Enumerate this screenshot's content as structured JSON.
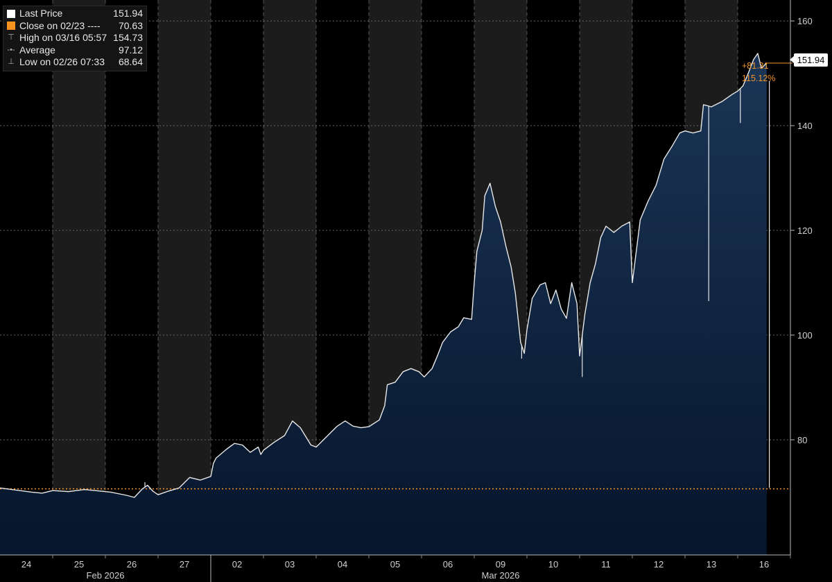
{
  "legend": {
    "last_price": {
      "label": "Last Price",
      "value": "151.94",
      "color": "#ffffff"
    },
    "close": {
      "label": "Close on 02/23 ----",
      "value": "70.63",
      "color": "#f7931e"
    },
    "high": {
      "label": "High on 03/16 05:57",
      "value": "154.73"
    },
    "average": {
      "label": "Average",
      "value": "97.12"
    },
    "low": {
      "label": "Low on 02/26 07:33",
      "value": "68.64"
    }
  },
  "last_badge": "151.94",
  "change": {
    "abs": "+81.31",
    "pct": "115.12%"
  },
  "chart_data": {
    "type": "area",
    "ylim": [
      58,
      164
    ],
    "yticks": [
      80,
      100,
      120,
      140,
      160
    ],
    "reference_line": {
      "value": 70.63,
      "style": "dotted",
      "color": "#f7931e"
    },
    "days": [
      "24",
      "25",
      "26",
      "27",
      "02",
      "03",
      "04",
      "05",
      "06",
      "09",
      "10",
      "11",
      "12",
      "13",
      "16"
    ],
    "months": [
      {
        "label": "Feb 2026",
        "from_day": 0,
        "to_day": 3
      },
      {
        "label": "Mar 2026",
        "from_day": 4,
        "to_day": 14
      }
    ],
    "series": [
      {
        "color": "#e8e8e8",
        "fill_top": "#1b3556",
        "fill_bottom": "#06162c",
        "points": [
          [
            0.0,
            70.8
          ],
          [
            0.3,
            70.4
          ],
          [
            0.6,
            70.0
          ],
          [
            0.8,
            69.8
          ],
          [
            1.0,
            70.3
          ],
          [
            1.3,
            70.1
          ],
          [
            1.6,
            70.5
          ],
          [
            1.9,
            70.2
          ],
          [
            2.1,
            70.0
          ],
          [
            2.4,
            69.4
          ],
          [
            2.55,
            69.0
          ],
          [
            2.7,
            70.6
          ],
          [
            2.8,
            71.3
          ],
          [
            2.9,
            70.2
          ],
          [
            3.0,
            69.5
          ],
          [
            3.2,
            70.2
          ],
          [
            3.4,
            70.8
          ],
          [
            3.6,
            72.8
          ],
          [
            3.8,
            72.3
          ],
          [
            4.0,
            73.0
          ],
          [
            4.05,
            75.5
          ],
          [
            4.1,
            76.5
          ],
          [
            4.3,
            78.2
          ],
          [
            4.45,
            79.3
          ],
          [
            4.6,
            79.0
          ],
          [
            4.75,
            77.6
          ],
          [
            4.9,
            78.6
          ],
          [
            4.95,
            77.2
          ],
          [
            5.0,
            78.0
          ],
          [
            5.2,
            79.5
          ],
          [
            5.4,
            80.8
          ],
          [
            5.55,
            83.6
          ],
          [
            5.7,
            82.3
          ],
          [
            5.9,
            79.0
          ],
          [
            6.0,
            78.6
          ],
          [
            6.2,
            80.6
          ],
          [
            6.4,
            82.6
          ],
          [
            6.55,
            83.6
          ],
          [
            6.7,
            82.6
          ],
          [
            6.85,
            82.3
          ],
          [
            7.0,
            82.5
          ],
          [
            7.2,
            83.8
          ],
          [
            7.3,
            86.5
          ],
          [
            7.35,
            90.5
          ],
          [
            7.5,
            91.0
          ],
          [
            7.65,
            93.0
          ],
          [
            7.8,
            93.6
          ],
          [
            7.95,
            93.0
          ],
          [
            8.05,
            92.0
          ],
          [
            8.2,
            93.6
          ],
          [
            8.3,
            96.0
          ],
          [
            8.4,
            98.6
          ],
          [
            8.55,
            100.6
          ],
          [
            8.7,
            101.6
          ],
          [
            8.8,
            103.3
          ],
          [
            8.95,
            103.0
          ],
          [
            9.0,
            110.0
          ],
          [
            9.05,
            116.0
          ],
          [
            9.15,
            120.0
          ],
          [
            9.2,
            126.6
          ],
          [
            9.3,
            129.0
          ],
          [
            9.4,
            124.6
          ],
          [
            9.5,
            121.6
          ],
          [
            9.6,
            117.0
          ],
          [
            9.7,
            113.0
          ],
          [
            9.78,
            108.0
          ],
          [
            9.88,
            98.6
          ],
          [
            9.95,
            96.5
          ],
          [
            10.0,
            101.0
          ],
          [
            10.1,
            107.0
          ],
          [
            10.25,
            109.6
          ],
          [
            10.35,
            110.0
          ],
          [
            10.45,
            106.0
          ],
          [
            10.55,
            108.6
          ],
          [
            10.65,
            105.0
          ],
          [
            10.75,
            103.2
          ],
          [
            10.85,
            110.0
          ],
          [
            10.95,
            106.0
          ],
          [
            11.0,
            96.0
          ],
          [
            11.1,
            104.0
          ],
          [
            11.2,
            110.0
          ],
          [
            11.3,
            113.6
          ],
          [
            11.4,
            118.6
          ],
          [
            11.5,
            120.8
          ],
          [
            11.65,
            119.6
          ],
          [
            11.8,
            120.8
          ],
          [
            11.95,
            121.6
          ],
          [
            12.0,
            110.0
          ],
          [
            12.05,
            114.0
          ],
          [
            12.15,
            122.0
          ],
          [
            12.3,
            125.6
          ],
          [
            12.45,
            128.6
          ],
          [
            12.6,
            133.6
          ],
          [
            12.75,
            136.0
          ],
          [
            12.9,
            138.6
          ],
          [
            13.0,
            139.0
          ],
          [
            13.15,
            138.6
          ],
          [
            13.3,
            139.0
          ],
          [
            13.35,
            144.0
          ],
          [
            13.5,
            143.6
          ],
          [
            13.7,
            144.6
          ],
          [
            13.9,
            146.0
          ],
          [
            14.0,
            146.6
          ],
          [
            14.1,
            147.6
          ],
          [
            14.2,
            150.0
          ],
          [
            14.3,
            152.6
          ],
          [
            14.38,
            153.8
          ],
          [
            14.45,
            151.0
          ],
          [
            14.55,
            151.94
          ]
        ],
        "spikes": [
          [
            2.75,
            71.9
          ],
          [
            9.9,
            95.5
          ],
          [
            11.05,
            92.0
          ],
          [
            13.45,
            106.5
          ],
          [
            14.05,
            140.5
          ],
          [
            14.6,
            148.5
          ]
        ]
      }
    ]
  }
}
